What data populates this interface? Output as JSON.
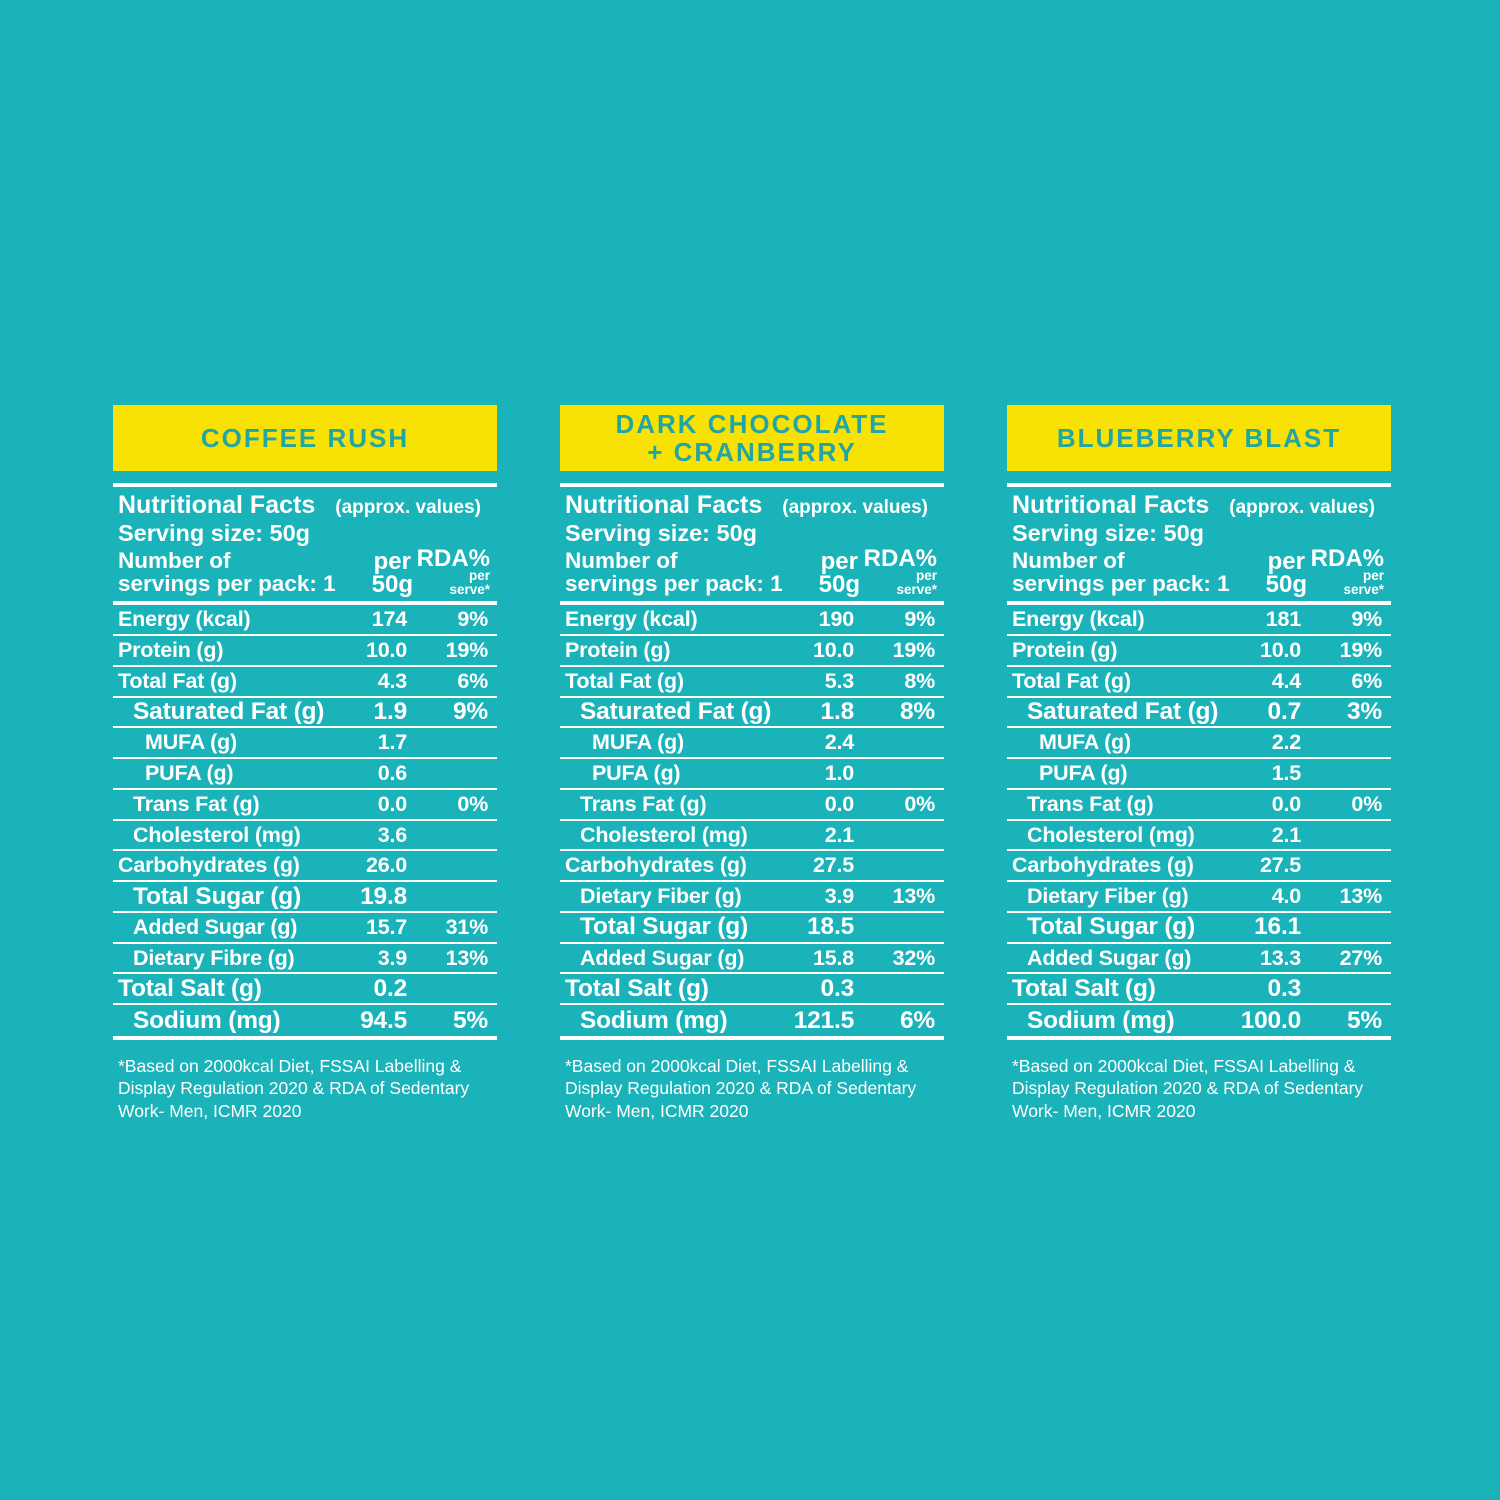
{
  "colors": {
    "bg": "#1ab3ba",
    "band": "#f7e204",
    "band_text": "#21a6a3",
    "text": "#ffffff"
  },
  "columns": {
    "per_line1": "per",
    "per_line2": "50g",
    "rda_main": "RDA%",
    "rda_sub1": "per",
    "rda_sub2": "serve*"
  },
  "panels": [
    {
      "title": "COFFEE RUSH",
      "header": {
        "facts_label": "Nutritional Facts",
        "approx_label": "(approx. values)",
        "serving_size": "Serving size: 50g",
        "servings_line1": "Number of",
        "servings_line2": "servings per pack: 1"
      },
      "rows": [
        {
          "label": "Energy (kcal)",
          "value": "174",
          "rda": "9%",
          "indent": 0,
          "emph": false
        },
        {
          "label": "Protein (g)",
          "value": "10.0",
          "rda": "19%",
          "indent": 0,
          "emph": false
        },
        {
          "label": "Total Fat (g)",
          "value": "4.3",
          "rda": "6%",
          "indent": 0,
          "emph": false
        },
        {
          "label": "Saturated Fat (g)",
          "value": "1.9",
          "rda": "9%",
          "indent": 1,
          "emph": true
        },
        {
          "label": "MUFA (g)",
          "value": "1.7",
          "rda": "",
          "indent": 2,
          "emph": false
        },
        {
          "label": "PUFA (g)",
          "value": "0.6",
          "rda": "",
          "indent": 2,
          "emph": false
        },
        {
          "label": "Trans Fat (g)",
          "value": "0.0",
          "rda": "0%",
          "indent": 1,
          "emph": false
        },
        {
          "label": "Cholesterol (mg)",
          "value": "3.6",
          "rda": "",
          "indent": 1,
          "emph": false
        },
        {
          "label": "Carbohydrates (g)",
          "value": "26.0",
          "rda": "",
          "indent": 0,
          "emph": false
        },
        {
          "label": "Total Sugar (g)",
          "value": "19.8",
          "rda": "",
          "indent": 1,
          "emph": true
        },
        {
          "label": "Added Sugar (g)",
          "value": "15.7",
          "rda": "31%",
          "indent": 1,
          "emph": false
        },
        {
          "label": "Dietary Fibre (g)",
          "value": "3.9",
          "rda": "13%",
          "indent": 1,
          "emph": false
        },
        {
          "label": "Total Salt (g)",
          "value": "0.2",
          "rda": "",
          "indent": 0,
          "emph": true
        },
        {
          "label": "Sodium (mg)",
          "value": "94.5",
          "rda": "5%",
          "indent": 1,
          "emph": true
        }
      ],
      "footnote": "*Based on 2000kcal Diet, FSSAI Labelling &\nDisplay Regulation 2020 & RDA of Sedentary\nWork- Men, ICMR 2020"
    },
    {
      "title": "DARK CHOCOLATE\n+ CRANBERRY",
      "header": {
        "facts_label": "Nutritional Facts",
        "approx_label": "(approx. values)",
        "serving_size": "Serving size: 50g",
        "servings_line1": "Number of",
        "servings_line2": "servings per pack: 1"
      },
      "rows": [
        {
          "label": "Energy (kcal)",
          "value": "190",
          "rda": "9%",
          "indent": 0,
          "emph": false
        },
        {
          "label": "Protein (g)",
          "value": "10.0",
          "rda": "19%",
          "indent": 0,
          "emph": false
        },
        {
          "label": "Total Fat (g)",
          "value": "5.3",
          "rda": "8%",
          "indent": 0,
          "emph": false
        },
        {
          "label": "Saturated Fat (g)",
          "value": "1.8",
          "rda": "8%",
          "indent": 1,
          "emph": true
        },
        {
          "label": "MUFA (g)",
          "value": "2.4",
          "rda": "",
          "indent": 2,
          "emph": false
        },
        {
          "label": "PUFA (g)",
          "value": "1.0",
          "rda": "",
          "indent": 2,
          "emph": false
        },
        {
          "label": "Trans Fat (g)",
          "value": "0.0",
          "rda": "0%",
          "indent": 1,
          "emph": false
        },
        {
          "label": "Cholesterol (mg)",
          "value": "2.1",
          "rda": "",
          "indent": 1,
          "emph": false
        },
        {
          "label": "Carbohydrates (g)",
          "value": "27.5",
          "rda": "",
          "indent": 0,
          "emph": false
        },
        {
          "label": "Dietary Fiber (g)",
          "value": "3.9",
          "rda": "13%",
          "indent": 1,
          "emph": false
        },
        {
          "label": "Total Sugar (g)",
          "value": "18.5",
          "rda": "",
          "indent": 1,
          "emph": true
        },
        {
          "label": "Added Sugar (g)",
          "value": "15.8",
          "rda": "32%",
          "indent": 1,
          "emph": false
        },
        {
          "label": "Total Salt (g)",
          "value": "0.3",
          "rda": "",
          "indent": 0,
          "emph": true
        },
        {
          "label": "Sodium (mg)",
          "value": "121.5",
          "rda": "6%",
          "indent": 1,
          "emph": true
        }
      ],
      "footnote": "*Based on 2000kcal Diet, FSSAI Labelling &\nDisplay Regulation 2020 & RDA of Sedentary\nWork- Men, ICMR 2020"
    },
    {
      "title": "BLUEBERRY BLAST",
      "header": {
        "facts_label": "Nutritional Facts",
        "approx_label": "(approx. values)",
        "serving_size": "Serving size: 50g",
        "servings_line1": "Number of",
        "servings_line2": "servings per pack: 1"
      },
      "rows": [
        {
          "label": "Energy (kcal)",
          "value": "181",
          "rda": "9%",
          "indent": 0,
          "emph": false
        },
        {
          "label": "Protein (g)",
          "value": "10.0",
          "rda": "19%",
          "indent": 0,
          "emph": false
        },
        {
          "label": "Total Fat (g)",
          "value": "4.4",
          "rda": "6%",
          "indent": 0,
          "emph": false
        },
        {
          "label": "Saturated Fat (g)",
          "value": "0.7",
          "rda": "3%",
          "indent": 1,
          "emph": true
        },
        {
          "label": "MUFA (g)",
          "value": "2.2",
          "rda": "",
          "indent": 2,
          "emph": false
        },
        {
          "label": "PUFA (g)",
          "value": "1.5",
          "rda": "",
          "indent": 2,
          "emph": false
        },
        {
          "label": "Trans Fat (g)",
          "value": "0.0",
          "rda": "0%",
          "indent": 1,
          "emph": false
        },
        {
          "label": "Cholesterol (mg)",
          "value": "2.1",
          "rda": "",
          "indent": 1,
          "emph": false
        },
        {
          "label": "Carbohydrates (g)",
          "value": "27.5",
          "rda": "",
          "indent": 0,
          "emph": false
        },
        {
          "label": "Dietary Fiber (g)",
          "value": "4.0",
          "rda": "13%",
          "indent": 1,
          "emph": false
        },
        {
          "label": "Total Sugar (g)",
          "value": "16.1",
          "rda": "",
          "indent": 1,
          "emph": true
        },
        {
          "label": "Added Sugar (g)",
          "value": "13.3",
          "rda": "27%",
          "indent": 1,
          "emph": false
        },
        {
          "label": "Total Salt (g)",
          "value": "0.3",
          "rda": "",
          "indent": 0,
          "emph": true
        },
        {
          "label": "Sodium (mg)",
          "value": "100.0",
          "rda": "5%",
          "indent": 1,
          "emph": true
        }
      ],
      "footnote": "*Based on 2000kcal Diet, FSSAI Labelling &\nDisplay Regulation 2020 & RDA of Sedentary\nWork- Men, ICMR 2020"
    }
  ]
}
